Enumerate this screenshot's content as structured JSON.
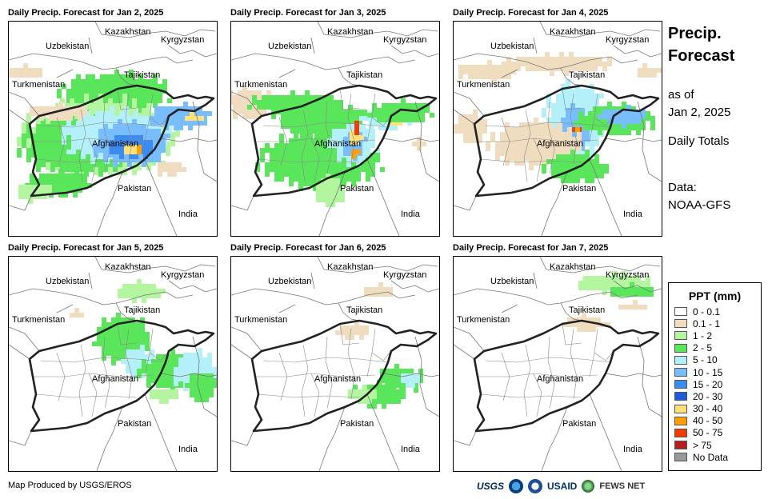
{
  "panels": [
    {
      "title": "Daily Precip. Forecast for Jan 2, 2025",
      "intensity": "high"
    },
    {
      "title": "Daily Precip. Forecast for Jan 3, 2025",
      "intensity": "east"
    },
    {
      "title": "Daily Precip. Forecast for Jan 4, 2025",
      "intensity": "northeast"
    },
    {
      "title": "Daily Precip. Forecast for Jan 5, 2025",
      "intensity": "low"
    },
    {
      "title": "Daily Precip. Forecast for Jan 6, 2025",
      "intensity": "verylow"
    },
    {
      "title": "Daily Precip. Forecast for Jan 7, 2025",
      "intensity": "minimal"
    }
  ],
  "map_labels": {
    "kazakhstan": "Kazakhstan",
    "uzbekistan": "Uzbekistan",
    "kyrgyzstan": "Kyrgyzstan",
    "tajikistan": "Tajikistan",
    "turkmenistan": "Turkmenistan",
    "afghanistan": "Afghanistan",
    "pakistan": "Pakistan",
    "india": "India"
  },
  "side": {
    "title_line1": "Precip.",
    "title_line2": "Forecast",
    "asof_line1": "as of",
    "asof_line2": "Jan 2, 2025",
    "totals": "Daily Totals",
    "data_line1": "Data:",
    "data_line2": "NOAA-GFS"
  },
  "legend": {
    "title": "PPT (mm)",
    "items": [
      {
        "label": "0 - 0.1",
        "color": "#ffffff"
      },
      {
        "label": "0.1 - 1",
        "color": "#f0dcbe"
      },
      {
        "label": "1 - 2",
        "color": "#b4f5a0"
      },
      {
        "label": "2 - 5",
        "color": "#5ae65a"
      },
      {
        "label": "5 - 10",
        "color": "#b4f0fa"
      },
      {
        "label": "10 - 15",
        "color": "#78beff"
      },
      {
        "label": "15 - 20",
        "color": "#3c8cf0"
      },
      {
        "label": "20 - 30",
        "color": "#1e5adc"
      },
      {
        "label": "30 - 40",
        "color": "#ffe178"
      },
      {
        "label": "40 - 50",
        "color": "#ffa000"
      },
      {
        "label": "50 - 75",
        "color": "#f03c00"
      },
      {
        "label": "> 75",
        "color": "#b41e1e"
      },
      {
        "label": "No Data",
        "color": "#999999"
      }
    ]
  },
  "footer": {
    "credit": "Map Produced by USGS/EROS",
    "logo_usgs": "USGS",
    "logo_usaid": "USAID",
    "logo_fews": "FEWS NET"
  }
}
